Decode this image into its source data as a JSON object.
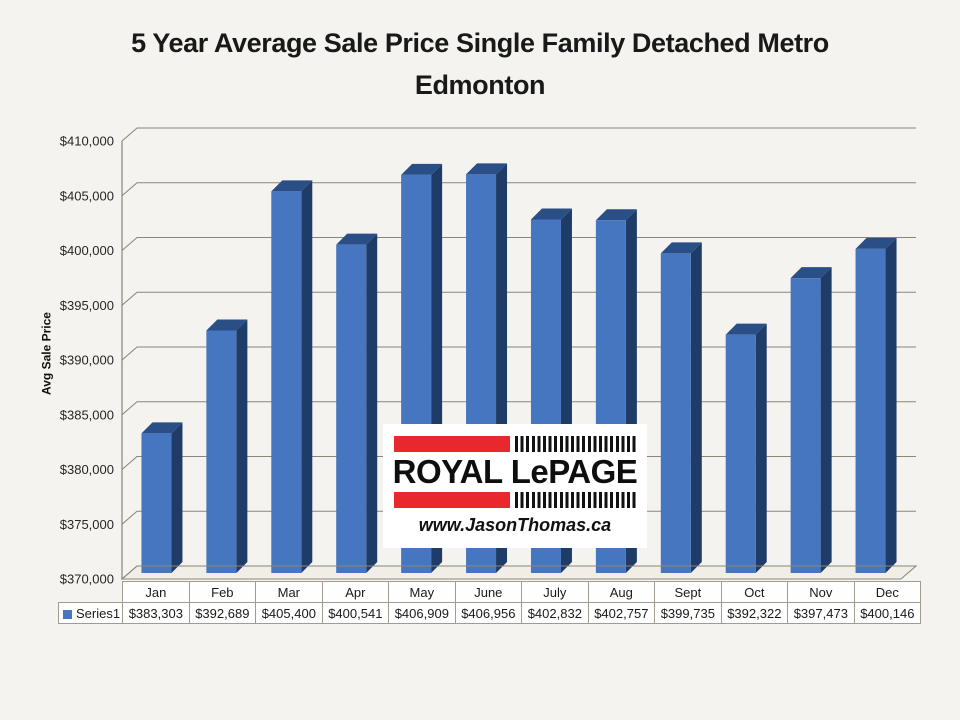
{
  "page": {
    "background": "#F5F3EF"
  },
  "chart_data": {
    "type": "bar",
    "title": "5 Year Average Sale Price Single Family Detached Metro Edmonton",
    "xlabel": "",
    "ylabel": "Avg Sale Price",
    "categories": [
      "Jan",
      "Feb",
      "Mar",
      "Apr",
      "May",
      "June",
      "July",
      "Aug",
      "Sept",
      "Oct",
      "Nov",
      "Dec"
    ],
    "series": [
      {
        "name": "Series1",
        "values": [
          383303,
          392689,
          405400,
          400541,
          406909,
          406956,
          402832,
          402757,
          399735,
          392322,
          397473,
          400146
        ]
      }
    ],
    "ylim": [
      370000,
      410000
    ],
    "ytick_step": 5000,
    "ytick_labels": [
      "$410,000",
      "$405,000",
      "$400,000",
      "$395,000",
      "$390,000",
      "$385,000",
      "$380,000",
      "$375,000",
      "$370,000"
    ],
    "grid": true,
    "effect_3d": true,
    "legend_position": "bottom data table",
    "value_format": "currency",
    "colors": {
      "bar_front": "#4676BF",
      "bar_side": "#1F3C68",
      "bar_top": "#2A4E86",
      "gridline": "#8C857A",
      "tick_text": "#262626",
      "floor_fill": "#F1EEE8"
    }
  },
  "table": {
    "legend_label": "Series1",
    "headers": [
      "Jan",
      "Feb",
      "Mar",
      "Apr",
      "May",
      "June",
      "July",
      "Aug",
      "Sept",
      "Oct",
      "Nov",
      "Dec"
    ],
    "values": [
      "$383,303",
      "$392,689",
      "$405,400",
      "$400,541",
      "$406,909",
      "$406,956",
      "$402,832",
      "$402,757",
      "$399,735",
      "$392,322",
      "$397,473",
      "$400,146"
    ]
  },
  "logo": {
    "brand": "ROYAL LePAGE",
    "website": "www.JasonThomas.ca",
    "red": "#E9282E"
  }
}
